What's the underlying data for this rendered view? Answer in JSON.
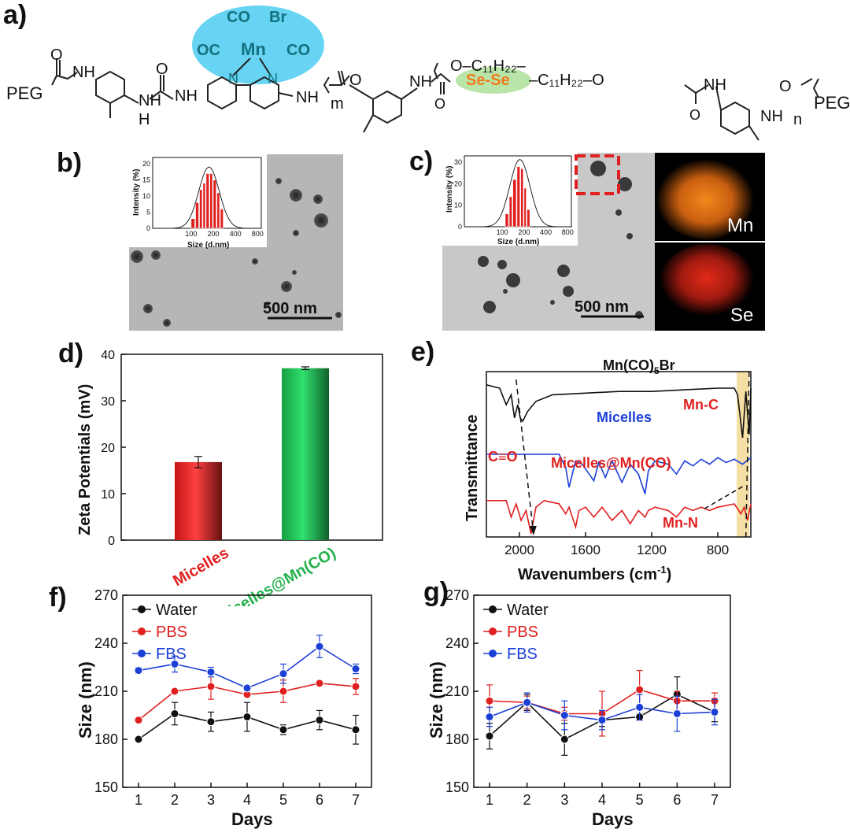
{
  "panels": {
    "a": "a)",
    "b": "b)",
    "c": "c)",
    "d": "d)",
    "e": "e)",
    "f": "f)",
    "g": "g)"
  },
  "structure": {
    "peg_left": "PEG",
    "peg_right": "PEG",
    "nh": "NH",
    "hn": "HN",
    "nh_under": "H",
    "n_atom": "N",
    "o_atom": "O",
    "co_top": "CO",
    "br": "Br",
    "oc_left": "OC",
    "mn": "Mn",
    "co_right": "CO",
    "m_sub": "m",
    "n_sub": "n",
    "c11h22_left": "O–C₁₁H₂₂–",
    "sese": "Se-Se",
    "c11h22_right": "–C₁₁H₂₂–O"
  },
  "tem_b": {
    "scale_label": "500 nm",
    "inset": {
      "xlabel": "Size (d.nm)",
      "ylabel": "Intensity (%)",
      "xticks": [
        "100",
        "200",
        "400",
        "800"
      ],
      "yticks": [
        "0",
        "5",
        "10",
        "15",
        "20"
      ]
    }
  },
  "tem_c": {
    "scale_label": "500 nm",
    "map_mn": "Mn",
    "map_se": "Se",
    "inset": {
      "xlabel": "Size (d.nm)",
      "ylabel": "Intensity (%)",
      "xticks": [
        "100",
        "200",
        "400",
        "800"
      ],
      "yticks": [
        "0",
        "10",
        "20",
        "30"
      ]
    }
  },
  "colors": {
    "mn_ellipse": "#66d4f2",
    "sese_ellipse": "#b9e6a8",
    "sese_text": "#f07a1a",
    "teal_text": "#14707e",
    "red": "#e02020",
    "green": "#22b14c",
    "blue": "#1c3fd6",
    "black": "#111111",
    "highlight": "#f6dfa4"
  },
  "chart_data": [
    {
      "panel": "b-inset",
      "type": "bar",
      "xlabel": "Size (d.nm)",
      "ylabel": "Intensity (%)",
      "xscale": "log",
      "xlim": [
        30,
        900
      ],
      "ylim": [
        0,
        22
      ],
      "bins": [
        100,
        115,
        130,
        145,
        160,
        180,
        200,
        225,
        250
      ],
      "values": [
        3,
        8,
        12,
        14,
        17,
        17,
        15,
        11,
        6
      ],
      "fit": "lognormal"
    },
    {
      "panel": "c-inset",
      "type": "bar",
      "xlabel": "Size (d.nm)",
      "ylabel": "Intensity (%)",
      "xscale": "log",
      "xlim": [
        30,
        900
      ],
      "ylim": [
        0,
        33
      ],
      "bins": [
        110,
        125,
        140,
        160,
        180,
        200,
        220
      ],
      "values": [
        6,
        14,
        22,
        28,
        27,
        18,
        8
      ],
      "fit": "lognormal"
    },
    {
      "panel": "d",
      "type": "bar",
      "categories": [
        "Micelles",
        "Micelles@Mn(CO)"
      ],
      "values": [
        16.8,
        37
      ],
      "errors": [
        1.2,
        0.3
      ],
      "ylabel": "Zeta Potentials (mV)",
      "ylim": [
        0,
        40
      ],
      "yticks": [
        0,
        10,
        20,
        30,
        40
      ]
    },
    {
      "panel": "e",
      "type": "line",
      "xlabel": "Wavenumbers (cm⁻¹)",
      "ylabel": "Transmittance",
      "xlim": [
        2200,
        600
      ],
      "xticks": [
        2000,
        1600,
        1200,
        800
      ],
      "series": [
        {
          "name": "Mn(CO)5Br",
          "x": [
            2200,
            2120,
            2080,
            2050,
            2030,
            2010,
            1995,
            1980,
            1950,
            1900,
            1800,
            1600,
            1400,
            1200,
            1000,
            800,
            700,
            680,
            650,
            630,
            610,
            600
          ],
          "y": [
            0.92,
            0.9,
            0.8,
            0.86,
            0.72,
            0.8,
            0.72,
            0.7,
            0.76,
            0.82,
            0.86,
            0.87,
            0.88,
            0.88,
            0.89,
            0.9,
            0.9,
            0.86,
            0.6,
            0.88,
            0.62,
            0.9
          ]
        },
        {
          "name": "Micelles",
          "x": [
            2200,
            1760,
            1720,
            1700,
            1660,
            1620,
            1550,
            1520,
            1480,
            1440,
            1380,
            1330,
            1280,
            1240,
            1220,
            1180,
            1100,
            1050,
            1000,
            950,
            900,
            850,
            800,
            750,
            700,
            650,
            600
          ],
          "y": [
            0.5,
            0.5,
            0.42,
            0.3,
            0.46,
            0.44,
            0.34,
            0.45,
            0.36,
            0.46,
            0.33,
            0.44,
            0.38,
            0.26,
            0.4,
            0.46,
            0.44,
            0.38,
            0.46,
            0.43,
            0.47,
            0.44,
            0.48,
            0.45,
            0.47,
            0.44,
            0.48
          ]
        },
        {
          "name": "Micelles@Mn(CO)",
          "x": [
            2200,
            2080,
            2050,
            2020,
            1990,
            1960,
            1930,
            1900,
            1850,
            1760,
            1720,
            1700,
            1660,
            1640,
            1600,
            1550,
            1500,
            1440,
            1380,
            1330,
            1280,
            1240,
            1220,
            1180,
            1100,
            1050,
            1000,
            950,
            900,
            850,
            800,
            700,
            660,
            640,
            620,
            600
          ],
          "y": [
            0.22,
            0.22,
            0.12,
            0.2,
            0.1,
            0.16,
            0.02,
            0.18,
            0.22,
            0.2,
            0.14,
            0.18,
            0.06,
            0.16,
            0.18,
            0.12,
            0.18,
            0.1,
            0.16,
            0.08,
            0.16,
            0.12,
            0.16,
            0.18,
            0.16,
            0.12,
            0.18,
            0.16,
            0.18,
            0.16,
            0.18,
            0.2,
            0.14,
            0.18,
            0.1,
            0.2
          ]
        }
      ],
      "annotations": [
        "Mn-C",
        "C≡O",
        "Mn-N"
      ]
    },
    {
      "panel": "f",
      "type": "line",
      "xlabel": "Days",
      "ylabel": "Size (nm)",
      "x": [
        1,
        2,
        3,
        4,
        5,
        6,
        7
      ],
      "ylim": [
        150,
        270
      ],
      "yticks": [
        150,
        180,
        210,
        240,
        270
      ],
      "series": [
        {
          "name": "Water",
          "values": [
            180,
            196,
            191,
            194,
            186,
            192,
            186
          ],
          "errors": [
            1,
            7,
            6,
            9,
            3,
            6,
            9
          ]
        },
        {
          "name": "PBS",
          "values": [
            192,
            210,
            213,
            208,
            210,
            215,
            213
          ],
          "errors": [
            1,
            1,
            8,
            1,
            7,
            1,
            5
          ]
        },
        {
          "name": "FBS",
          "values": [
            223,
            227,
            222,
            212,
            221,
            238,
            224
          ],
          "errors": [
            2,
            5,
            3,
            1,
            6,
            7,
            3
          ]
        }
      ],
      "legend": "top-left"
    },
    {
      "panel": "g",
      "type": "line",
      "xlabel": "Days",
      "ylabel": "Size (nm)",
      "x": [
        1,
        2,
        3,
        4,
        5,
        6,
        7
      ],
      "ylim": [
        150,
        270
      ],
      "yticks": [
        150,
        180,
        210,
        240,
        270
      ],
      "series": [
        {
          "name": "Water",
          "values": [
            182,
            203,
            180,
            192,
            194,
            208,
            197
          ],
          "errors": [
            8,
            5,
            10,
            4,
            2,
            11,
            6
          ]
        },
        {
          "name": "PBS",
          "values": [
            204,
            203,
            196,
            196,
            211,
            204,
            204
          ],
          "errors": [
            10,
            4,
            4,
            14,
            12,
            6,
            5
          ]
        },
        {
          "name": "FBS",
          "values": [
            194,
            203,
            195,
            192,
            200,
            196,
            197
          ],
          "errors": [
            6,
            6,
            9,
            6,
            8,
            11,
            8
          ]
        }
      ],
      "legend": "top-left"
    }
  ]
}
